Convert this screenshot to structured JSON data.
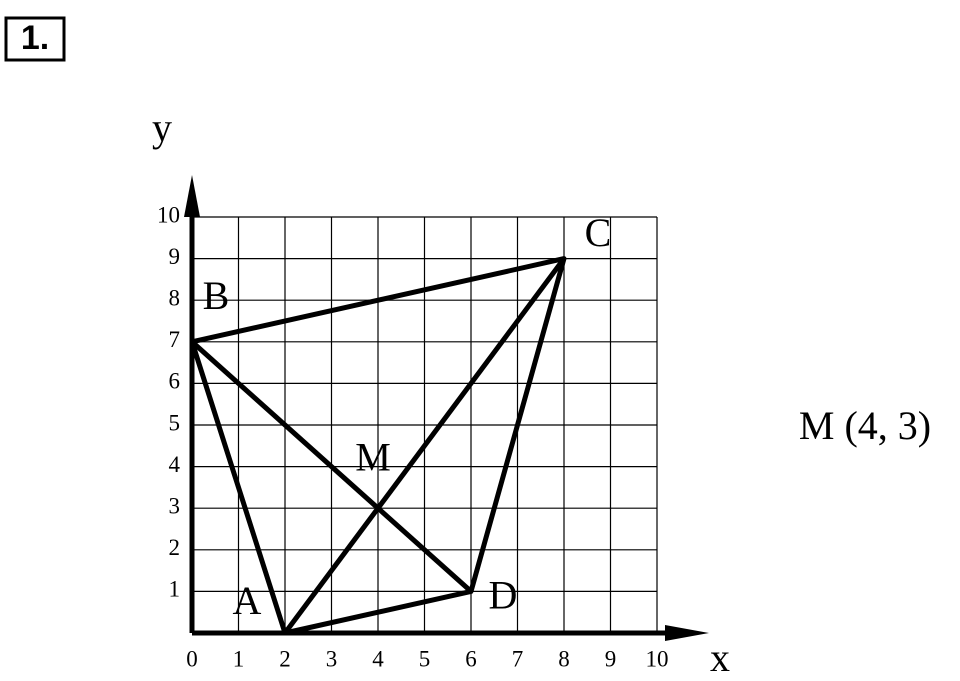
{
  "chart_data": {
    "type": "polygon",
    "badge": "1.",
    "note": "M (4, 3)",
    "xlabel": "x",
    "ylabel": "y",
    "xlim": [
      0,
      10
    ],
    "ylim": [
      0,
      10
    ],
    "xticks": [
      0,
      1,
      2,
      3,
      4,
      5,
      6,
      7,
      8,
      9,
      10
    ],
    "yticks": [
      1,
      2,
      3,
      4,
      5,
      6,
      7,
      8,
      9,
      10
    ],
    "grid": true,
    "vertices": [
      {
        "name": "A",
        "x": 2,
        "y": 0
      },
      {
        "name": "B",
        "x": 0,
        "y": 7
      },
      {
        "name": "C",
        "x": 8,
        "y": 9
      },
      {
        "name": "D",
        "x": 6,
        "y": 1
      }
    ],
    "intersection": {
      "name": "M",
      "x": 4,
      "y": 3
    }
  }
}
